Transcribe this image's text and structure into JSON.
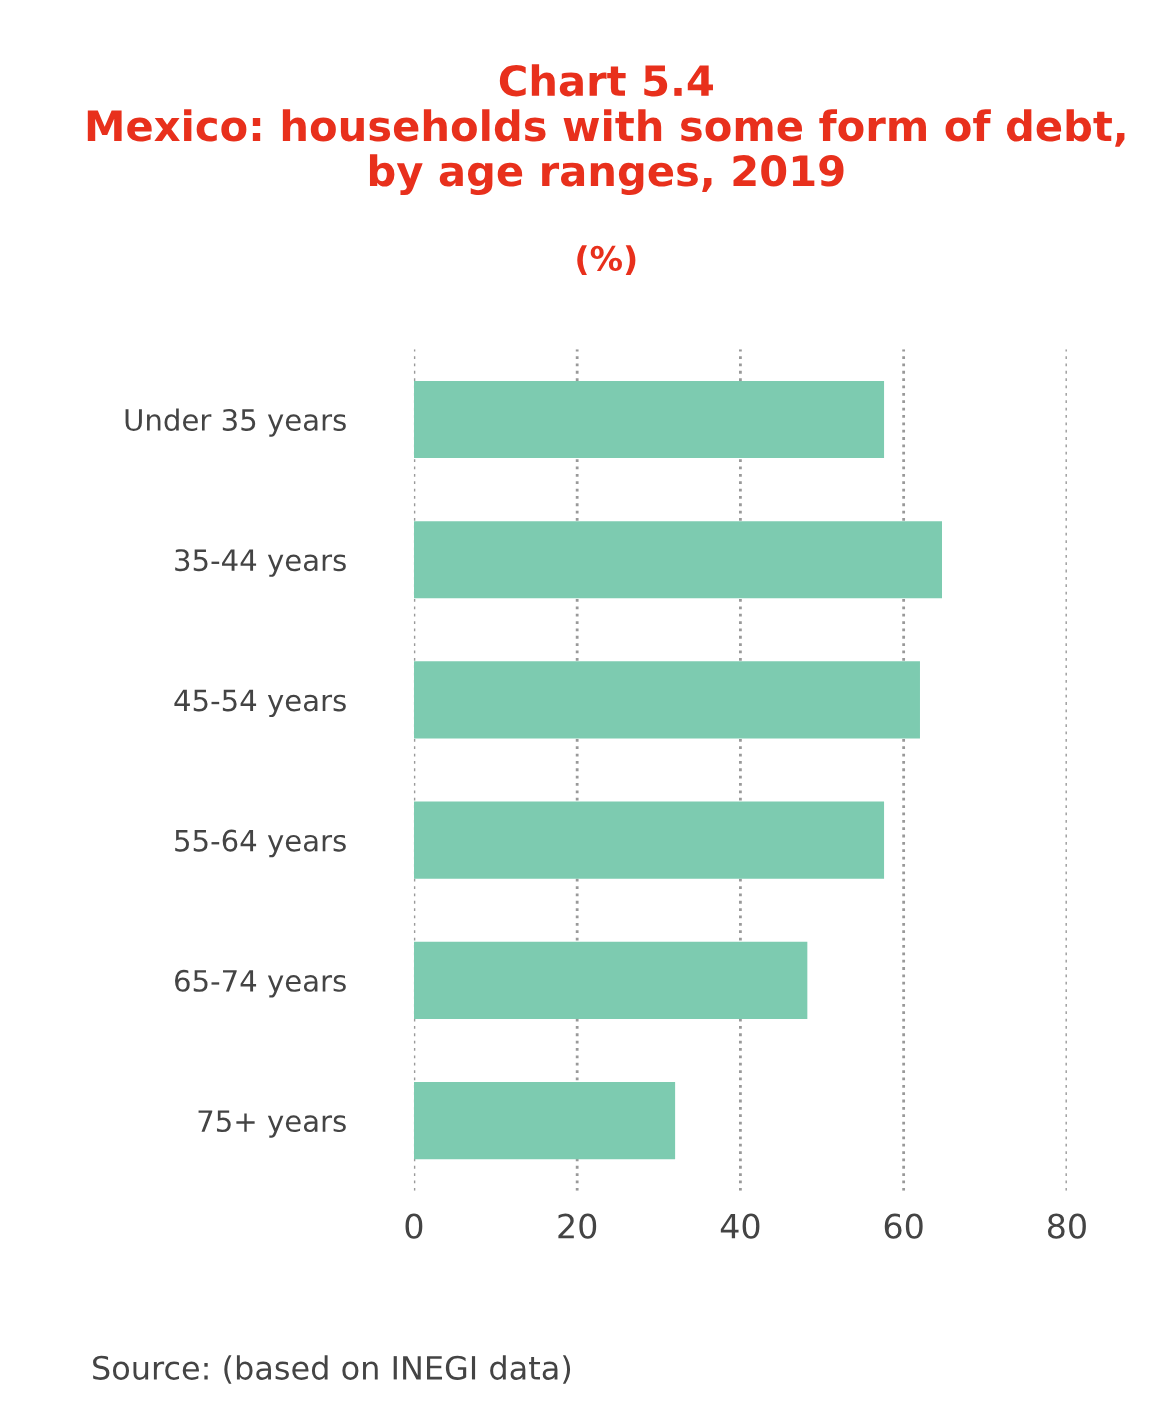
{
  "chart_data": {
    "type": "bar",
    "orientation": "horizontal",
    "title": "Chart 5.4\nMexico: households with some form of debt,\nby age ranges, 2019",
    "subtitle": "(%)",
    "categories": [
      "Under 35 years",
      "35-44 years",
      "45-54 years",
      "55-64 years",
      "65-74 years",
      "75+ years"
    ],
    "values": [
      57.6,
      64.7,
      62.0,
      57.6,
      48.2,
      32.0
    ],
    "color": "#7dcbb0",
    "xlim": [
      0,
      80
    ],
    "xticks": [
      0,
      20,
      40,
      60,
      80
    ],
    "grid": "x",
    "annotations": [
      "Source: (based on INEGI data)"
    ]
  }
}
